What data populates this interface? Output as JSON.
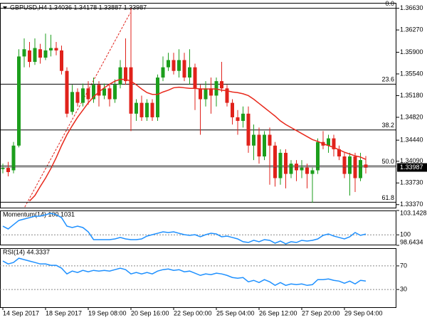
{
  "chart_data": [
    {
      "type": "candlestick",
      "header": "GBPUSD,H4  1.34036 1.34178 1.33887 1.33987",
      "categories": [
        "14 Sep 2017",
        null,
        null,
        null,
        null,
        null,
        null,
        null,
        "18 Sep 2017",
        null,
        null,
        null,
        null,
        null,
        null,
        null,
        "19 Sep 08:00",
        null,
        null,
        null,
        null,
        null,
        null,
        null,
        "20 Sep 16:00",
        null,
        null,
        null,
        null,
        null,
        null,
        null,
        "22 Sep 00:00",
        null,
        null,
        null,
        null,
        null,
        null,
        null,
        "25 Sep 04:00",
        null,
        null,
        null,
        null,
        null,
        null,
        null,
        "26 Sep 12:00",
        null,
        null,
        null,
        null,
        null,
        null,
        null,
        "27 Sep 20:00",
        null,
        null,
        null,
        null,
        null,
        null,
        null,
        "29 Sep 04:00",
        null,
        null,
        null,
        null
      ],
      "open": [
        1.3396,
        1.3398,
        1.3394,
        1.3435,
        1.3583,
        1.3593,
        1.3574,
        1.3595,
        1.3581,
        1.3593,
        1.3597,
        1.3593,
        1.3559,
        1.3491,
        1.3524,
        1.3506,
        1.353,
        1.3512,
        1.3536,
        1.3518,
        1.353,
        1.3512,
        1.3536,
        1.3565,
        1.3565,
        1.3488,
        1.3506,
        1.3482,
        1.3506,
        1.3482,
        1.3548,
        1.3565,
        1.3577,
        1.3559,
        1.3577,
        1.3548,
        1.3565,
        1.353,
        1.3512,
        1.353,
        1.3518,
        1.3542,
        1.353,
        1.3506,
        1.3482,
        1.3476,
        1.3488,
        1.3435,
        1.3453,
        1.3417,
        1.3453,
        1.3435,
        1.3381,
        1.3423,
        1.3388,
        1.3405,
        1.3394,
        1.3399,
        1.3388,
        1.3394,
        1.3441,
        1.3435,
        1.3447,
        1.3429,
        1.3417,
        1.3388,
        1.3417,
        1.3381,
        1.34036
      ],
      "high": [
        1.3405,
        1.3408,
        1.3441,
        1.3595,
        1.3613,
        1.3607,
        1.3613,
        1.3604,
        1.3621,
        1.3619,
        1.3607,
        1.3601,
        1.3565,
        1.3536,
        1.353,
        1.3538,
        1.3542,
        1.3548,
        1.3542,
        1.3538,
        1.3536,
        1.3545,
        1.3577,
        1.3613,
        1.3663,
        1.3512,
        1.3518,
        1.3512,
        1.3512,
        1.3553,
        1.3583,
        1.3589,
        1.3589,
        1.3595,
        1.3589,
        1.3595,
        1.3571,
        1.3536,
        1.3542,
        1.3548,
        1.3548,
        1.3574,
        1.3536,
        1.3512,
        1.3494,
        1.35,
        1.35,
        1.347,
        1.3465,
        1.3459,
        1.3465,
        1.3441,
        1.3429,
        1.3429,
        1.3411,
        1.3411,
        1.3411,
        1.3405,
        1.3399,
        1.3447,
        1.3459,
        1.3453,
        1.3453,
        1.3435,
        1.3423,
        1.3423,
        1.3423,
        1.3423,
        1.34178
      ],
      "low": [
        1.3389,
        1.3384,
        1.3389,
        1.3432,
        1.3565,
        1.3565,
        1.3569,
        1.3571,
        1.3577,
        1.3583,
        1.3585,
        1.3553,
        1.3482,
        1.3486,
        1.35,
        1.35,
        1.3503,
        1.3506,
        1.35,
        1.3512,
        1.35,
        1.3506,
        1.353,
        1.3536,
        1.3459,
        1.3476,
        1.3476,
        1.3476,
        1.3476,
        1.3476,
        1.3542,
        1.3559,
        1.3553,
        1.3548,
        1.3542,
        1.3536,
        1.3494,
        1.3453,
        1.35,
        1.3488,
        1.35,
        1.3524,
        1.35,
        1.347,
        1.3453,
        1.3465,
        1.3423,
        1.3411,
        1.3405,
        1.3411,
        1.337,
        1.3367,
        1.337,
        1.3364,
        1.3381,
        1.3376,
        1.3381,
        1.3364,
        1.334,
        1.3388,
        1.3429,
        1.3423,
        1.3417,
        1.3411,
        1.3381,
        1.3352,
        1.3358,
        1.3376,
        1.33887
      ],
      "close": [
        1.3398,
        1.3391,
        1.3435,
        1.3583,
        1.3595,
        1.3574,
        1.3597,
        1.3581,
        1.3593,
        1.3597,
        1.3593,
        1.3559,
        1.3488,
        1.3524,
        1.3506,
        1.353,
        1.3512,
        1.3536,
        1.3518,
        1.353,
        1.3512,
        1.3536,
        1.3565,
        1.3542,
        1.3488,
        1.3506,
        1.3482,
        1.3506,
        1.3482,
        1.3548,
        1.3565,
        1.3577,
        1.3559,
        1.3577,
        1.3548,
        1.3565,
        1.353,
        1.3512,
        1.353,
        1.3518,
        1.3542,
        1.353,
        1.3506,
        1.3482,
        1.3476,
        1.3488,
        1.3435,
        1.3453,
        1.3417,
        1.3453,
        1.3435,
        1.3381,
        1.3423,
        1.3388,
        1.3405,
        1.3394,
        1.3399,
        1.3388,
        1.3394,
        1.3441,
        1.3435,
        1.3447,
        1.3429,
        1.3417,
        1.3388,
        1.3417,
        1.3381,
        1.3411,
        1.33987
      ],
      "up_color": "#1c9e1c",
      "down_color": "#e0221b",
      "ma": {
        "color": "#e8291c",
        "values": [
          null,
          null,
          null,
          null,
          null,
          1.3343,
          1.3352,
          1.3367,
          1.3381,
          1.3397,
          1.3415,
          1.3435,
          1.3453,
          1.3468,
          1.3482,
          1.3494,
          1.3506,
          1.3516,
          1.3524,
          1.3531,
          1.3537,
          1.3542,
          1.3545,
          1.3545,
          1.3542,
          1.3536,
          1.3529,
          1.3523,
          1.352,
          1.352,
          1.3524,
          1.3527,
          1.3531,
          1.3532,
          1.3531,
          1.353,
          1.353,
          1.3529,
          1.3529,
          1.3529,
          1.3529,
          1.3527,
          1.3526,
          1.3524,
          1.3523,
          1.3521,
          1.3518,
          1.3512,
          1.3505,
          1.3498,
          1.3491,
          1.3484,
          1.3476,
          1.347,
          1.3465,
          1.346,
          1.3455,
          1.345,
          1.3445,
          1.3442,
          1.3438,
          1.3435,
          1.3432,
          1.3428,
          1.3424,
          1.3421,
          1.3418,
          1.3416,
          1.3412
        ]
      },
      "fib_levels": [
        {
          "value": 1.3663,
          "label": "0.0"
        },
        {
          "value": 1.3537,
          "label": "23.6"
        },
        {
          "value": 1.3461,
          "label": "38.2"
        },
        {
          "value": 1.3401,
          "label": "50.0"
        },
        {
          "value": 1.3341,
          "label": "61.8"
        }
      ],
      "last_price": 1.33987,
      "ylim": [
        1.3332,
        1.3672
      ],
      "yticks": [
        {
          "value": 1.3663,
          "label": "1.36630"
        },
        {
          "value": 1.3627,
          "label": "1.36270"
        },
        {
          "value": 1.359,
          "label": "1.35900"
        },
        {
          "value": 1.3554,
          "label": "1.35540"
        },
        {
          "value": 1.3518,
          "label": "1.35180"
        },
        {
          "value": 1.3482,
          "label": "1.34820"
        },
        {
          "value": 1.3444,
          "label": "1.34440"
        },
        {
          "value": 1.3409,
          "label": "1.34090"
        },
        {
          "value": 1.3373,
          "label": "1.33730"
        },
        {
          "value": 1.3337,
          "label": "1.33370"
        }
      ],
      "grid": false
    },
    {
      "type": "line",
      "title": "Momentum(14) 100.1031",
      "color": "#1e90ff",
      "values": [
        101.12,
        100.76,
        101.31,
        101.86,
        102.04,
        102.22,
        102.41,
        102.41,
        102.59,
        102.78,
        102.59,
        102.22,
        101.12,
        100.94,
        101.12,
        100.94,
        100.39,
        99.38,
        99.38,
        99.38,
        99.38,
        99.47,
        99.66,
        99.47,
        99.38,
        99.38,
        99.47,
        99.84,
        100.02,
        100.2,
        100.39,
        100.3,
        100.39,
        100.2,
        100.02,
        99.93,
        100.02,
        99.75,
        100.02,
        100.2,
        100.11,
        99.75,
        99.84,
        99.66,
        99.47,
        99.11,
        99.01,
        99.29,
        99.11,
        99.38,
        99.29,
        98.92,
        99.2,
        98.83,
        99.11,
        99.01,
        99.29,
        99.2,
        99.29,
        99.47,
        99.93,
        100.11,
        99.84,
        99.66,
        99.47,
        99.75,
        100.3,
        99.93,
        100.1031
      ],
      "ylim": [
        98.6434,
        103.1428
      ],
      "yticks": [
        103.1428,
        100,
        98.6434
      ],
      "grid": true
    },
    {
      "type": "line",
      "title": "RSI(14) 44.3337",
      "color": "#1e90ff",
      "values": [
        78.2,
        73.3,
        75.8,
        83.0,
        80.6,
        78.2,
        75.8,
        73.3,
        73.3,
        70.9,
        70.9,
        66.1,
        56.4,
        61.2,
        58.8,
        62.4,
        60.0,
        62.4,
        61.2,
        62.4,
        61.2,
        63.6,
        66.1,
        63.6,
        56.4,
        58.8,
        56.4,
        58.8,
        56.4,
        61.2,
        63.6,
        64.8,
        62.4,
        63.6,
        60.0,
        61.2,
        57.6,
        53.9,
        56.4,
        55.2,
        57.6,
        56.4,
        53.9,
        50.3,
        49.1,
        50.3,
        43.0,
        45.5,
        41.8,
        46.7,
        43.0,
        37.0,
        41.8,
        37.0,
        39.4,
        38.2,
        39.4,
        37.0,
        38.2,
        46.7,
        46.7,
        47.9,
        45.5,
        44.2,
        40.6,
        44.2,
        39.4,
        45.5,
        44.3337
      ],
      "ylim": [
        0,
        100
      ],
      "yticks": [
        70,
        30
      ],
      "grid": true
    }
  ]
}
